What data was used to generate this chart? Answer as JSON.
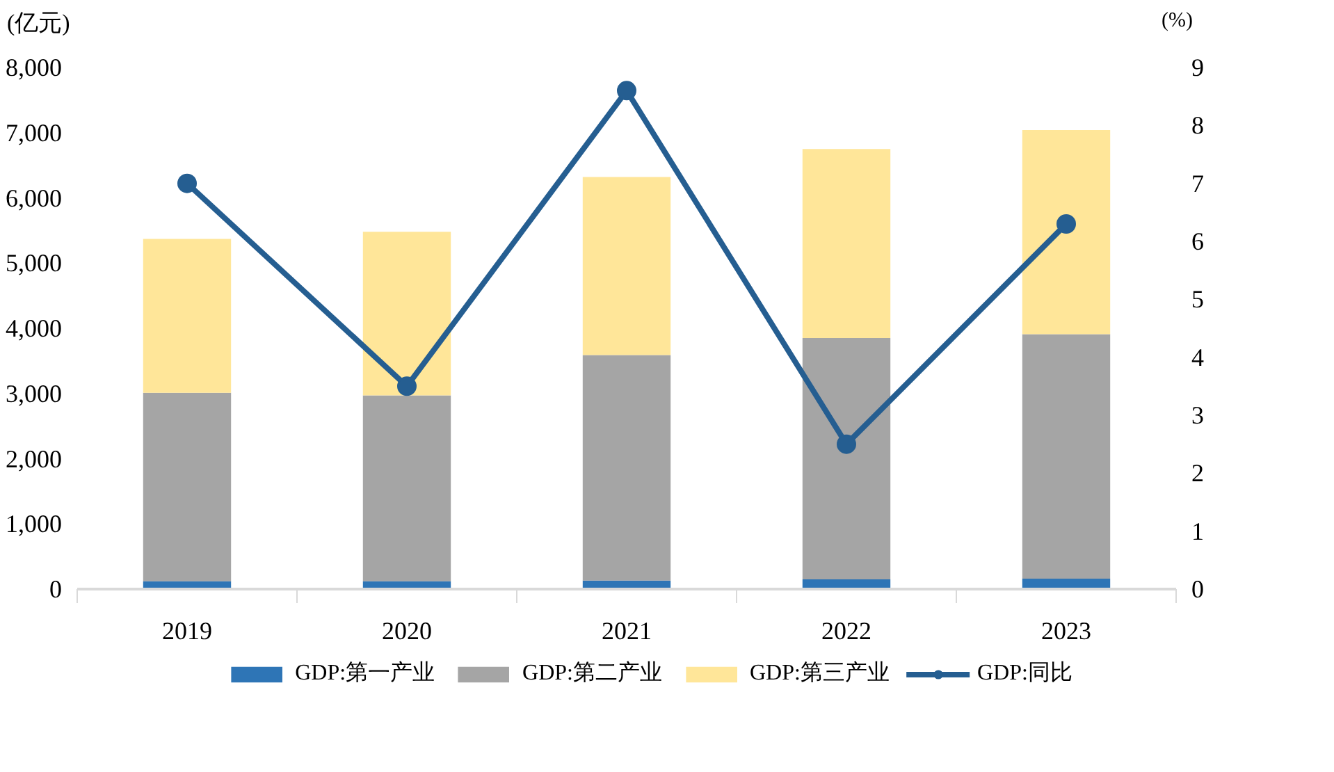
{
  "chart_data": {
    "type": "bar",
    "stacked": true,
    "categories": [
      "2019",
      "2020",
      "2021",
      "2022",
      "2023"
    ],
    "ylabel": "(亿元)",
    "y2label": "(%)",
    "series": [
      {
        "name": "GDP:第一产业",
        "color": "#2e75b6",
        "values": [
          120,
          120,
          130,
          150,
          160
        ]
      },
      {
        "name": "GDP:第二产业",
        "color": "#a5a5a5",
        "values": [
          2890,
          2850,
          3460,
          3700,
          3750
        ]
      },
      {
        "name": "GDP:第三产业",
        "color": "#ffe699",
        "values": [
          2360,
          2510,
          2730,
          2900,
          3130
        ]
      },
      {
        "name": "GDP:同比",
        "type": "line",
        "axis": "y2",
        "color": "#255e91",
        "marker": "circle",
        "line_style": "solid",
        "values": [
          7.0,
          3.5,
          8.6,
          2.5,
          6.3
        ]
      }
    ],
    "ylim": [
      0,
      8000
    ],
    "yticks": [
      {
        "value": 0,
        "label": "0"
      },
      {
        "value": 1000,
        "label": "1,000"
      },
      {
        "value": 2000,
        "label": "2,000"
      },
      {
        "value": 3000,
        "label": "3,000"
      },
      {
        "value": 4000,
        "label": "4,000"
      },
      {
        "value": 5000,
        "label": "5,000"
      },
      {
        "value": 6000,
        "label": "6,000"
      },
      {
        "value": 7000,
        "label": "7,000"
      },
      {
        "value": 8000,
        "label": "8,000"
      }
    ],
    "y2lim": [
      0,
      9
    ],
    "y2ticks": [
      0,
      1,
      2,
      3,
      4,
      5,
      6,
      7,
      8,
      9
    ],
    "grid": false,
    "legend": "bottom"
  }
}
